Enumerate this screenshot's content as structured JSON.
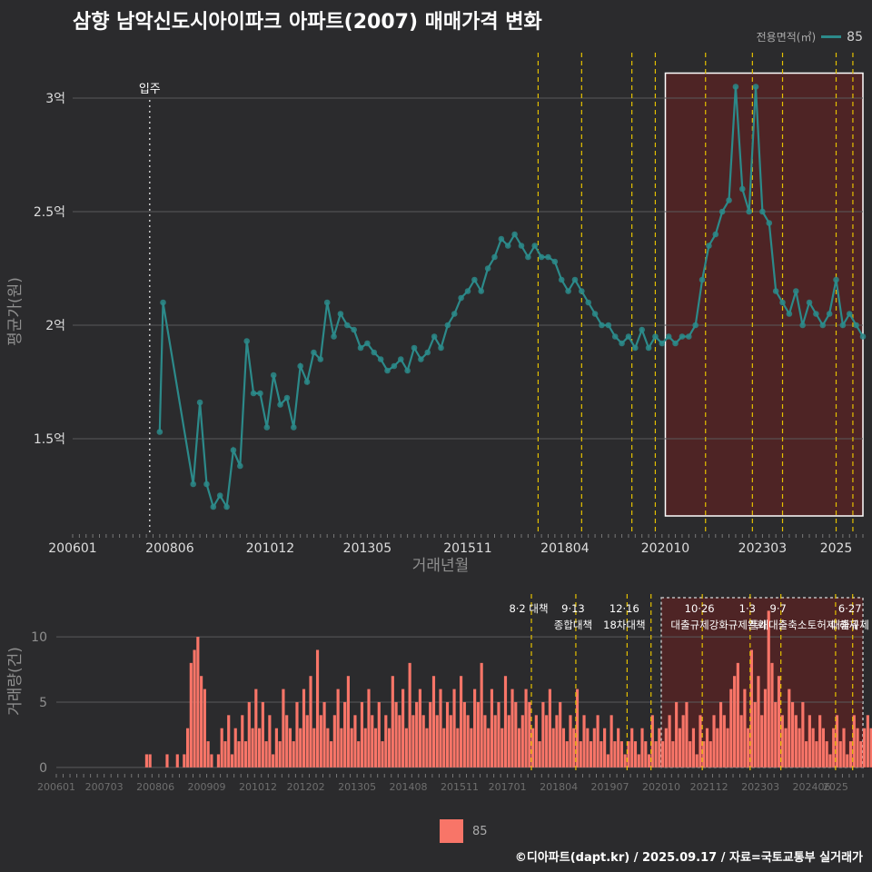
{
  "title": "삼향 남악신도시아이파크 아파트(2007) 매매가격 변화",
  "legend_top": {
    "title": "전용면적(㎡)",
    "value": "85"
  },
  "legend_bottom": {
    "value": "85"
  },
  "footer": "©디아파트(dapt.kr) / 2025.09.17 / 자료=국토교통부 실거래가",
  "colors": {
    "line": "#2c8a8a",
    "point": "#2c8a8a",
    "bar": "#f87568",
    "highlight": "#6b1f1f",
    "policy": "#e5c100",
    "bg": "#2b2b2d"
  },
  "chart_data": [
    {
      "type": "line",
      "title": "삼향 남악신도시아이파크 아파트(2007) 매매가격 변화",
      "xlabel": "거래년월",
      "ylabel": "평균가(원)",
      "x_ticks": [
        "200601",
        "200806",
        "201012",
        "201305",
        "201511",
        "201804",
        "202010",
        "202303",
        "2025"
      ],
      "y_ticks": [
        {
          "value": 1.5,
          "label": "1.5억"
        },
        {
          "value": 2.0,
          "label": "2억"
        },
        {
          "value": 2.5,
          "label": "2.5억"
        },
        {
          "value": 3.0,
          "label": "3억"
        }
      ],
      "ylim": [
        1.08,
        3.2
      ],
      "annotation": {
        "label": "입주",
        "x": "2007-12"
      },
      "policy_lines": [
        "2017-08",
        "2018-09",
        "2019-12",
        "2020-07",
        "2021-10",
        "2022-12",
        "2023-09",
        "2025-01",
        "2025-06"
      ],
      "highlight_range": [
        "2020-10",
        "2025-09"
      ],
      "series": [
        {
          "name": "85",
          "points": [
            [
              "2008-03",
              1.53
            ],
            [
              "2008-04",
              2.1
            ],
            [
              "2009-01",
              1.3
            ],
            [
              "2009-03",
              1.66
            ],
            [
              "2009-05",
              1.3
            ],
            [
              "2009-07",
              1.2
            ],
            [
              "2009-09",
              1.25
            ],
            [
              "2009-11",
              1.2
            ],
            [
              "2010-01",
              1.45
            ],
            [
              "2010-03",
              1.38
            ],
            [
              "2010-05",
              1.93
            ],
            [
              "2010-07",
              1.7
            ],
            [
              "2010-09",
              1.7
            ],
            [
              "2010-11",
              1.55
            ],
            [
              "2011-01",
              1.78
            ],
            [
              "2011-03",
              1.65
            ],
            [
              "2011-05",
              1.68
            ],
            [
              "2011-07",
              1.55
            ],
            [
              "2011-09",
              1.82
            ],
            [
              "2011-11",
              1.75
            ],
            [
              "2012-01",
              1.88
            ],
            [
              "2012-03",
              1.85
            ],
            [
              "2012-05",
              2.1
            ],
            [
              "2012-07",
              1.95
            ],
            [
              "2012-09",
              2.05
            ],
            [
              "2012-11",
              2.0
            ],
            [
              "2013-01",
              1.98
            ],
            [
              "2013-03",
              1.9
            ],
            [
              "2013-05",
              1.92
            ],
            [
              "2013-07",
              1.88
            ],
            [
              "2013-09",
              1.85
            ],
            [
              "2013-11",
              1.8
            ],
            [
              "2014-01",
              1.82
            ],
            [
              "2014-03",
              1.85
            ],
            [
              "2014-05",
              1.8
            ],
            [
              "2014-07",
              1.9
            ],
            [
              "2014-09",
              1.85
            ],
            [
              "2014-11",
              1.88
            ],
            [
              "2015-01",
              1.95
            ],
            [
              "2015-03",
              1.9
            ],
            [
              "2015-05",
              2.0
            ],
            [
              "2015-07",
              2.05
            ],
            [
              "2015-09",
              2.12
            ],
            [
              "2015-11",
              2.15
            ],
            [
              "2016-01",
              2.2
            ],
            [
              "2016-03",
              2.15
            ],
            [
              "2016-05",
              2.25
            ],
            [
              "2016-07",
              2.3
            ],
            [
              "2016-09",
              2.38
            ],
            [
              "2016-11",
              2.35
            ],
            [
              "2017-01",
              2.4
            ],
            [
              "2017-03",
              2.35
            ],
            [
              "2017-05",
              2.3
            ],
            [
              "2017-07",
              2.35
            ],
            [
              "2017-09",
              2.3
            ],
            [
              "2017-11",
              2.3
            ],
            [
              "2018-01",
              2.28
            ],
            [
              "2018-03",
              2.2
            ],
            [
              "2018-05",
              2.15
            ],
            [
              "2018-07",
              2.2
            ],
            [
              "2018-09",
              2.15
            ],
            [
              "2018-11",
              2.1
            ],
            [
              "2019-01",
              2.05
            ],
            [
              "2019-03",
              2.0
            ],
            [
              "2019-05",
              2.0
            ],
            [
              "2019-07",
              1.95
            ],
            [
              "2019-09",
              1.92
            ],
            [
              "2019-11",
              1.95
            ],
            [
              "2020-01",
              1.9
            ],
            [
              "2020-03",
              1.98
            ],
            [
              "2020-05",
              1.9
            ],
            [
              "2020-07",
              1.95
            ],
            [
              "2020-09",
              1.92
            ],
            [
              "2020-11",
              1.95
            ],
            [
              "2021-01",
              1.92
            ],
            [
              "2021-03",
              1.95
            ],
            [
              "2021-05",
              1.95
            ],
            [
              "2021-07",
              2.0
            ],
            [
              "2021-09",
              2.2
            ],
            [
              "2021-11",
              2.35
            ],
            [
              "2022-01",
              2.4
            ],
            [
              "2022-03",
              2.5
            ],
            [
              "2022-05",
              2.55
            ],
            [
              "2022-07",
              3.05
            ],
            [
              "2022-09",
              2.6
            ],
            [
              "2022-11",
              2.5
            ],
            [
              "2023-01",
              3.05
            ],
            [
              "2023-03",
              2.5
            ],
            [
              "2023-05",
              2.45
            ],
            [
              "2023-07",
              2.15
            ],
            [
              "2023-09",
              2.1
            ],
            [
              "2023-11",
              2.05
            ],
            [
              "2024-01",
              2.15
            ],
            [
              "2024-03",
              2.0
            ],
            [
              "2024-05",
              2.1
            ],
            [
              "2024-07",
              2.05
            ],
            [
              "2024-09",
              2.0
            ],
            [
              "2024-11",
              2.05
            ],
            [
              "2025-01",
              2.2
            ],
            [
              "2025-03",
              2.0
            ],
            [
              "2025-05",
              2.05
            ],
            [
              "2025-07",
              2.0
            ],
            [
              "2025-09",
              1.95
            ]
          ]
        }
      ]
    },
    {
      "type": "bar",
      "xlabel": "",
      "ylabel": "거래량(건)",
      "x_ticks": [
        "200601",
        "200703",
        "200806",
        "200909",
        "201012",
        "201202",
        "201305",
        "201408",
        "201511",
        "201701",
        "201804",
        "201907",
        "202010",
        "202112",
        "202303",
        "202406",
        "2025"
      ],
      "y_ticks": [
        0,
        5,
        10
      ],
      "ylim": [
        -0.5,
        13
      ],
      "highlight_range": [
        "2020-10",
        "2025-09"
      ],
      "policies": [
        {
          "date": "2017-08",
          "line1": "8·2 대책",
          "line2": ""
        },
        {
          "date": "2018-09",
          "line1": "9·13",
          "line2": "종합대책"
        },
        {
          "date": "2019-12",
          "line1": "12·16",
          "line2": "18차대책"
        },
        {
          "date": "2020-07",
          "line1": "",
          "line2": ""
        },
        {
          "date": "2021-10",
          "line1": "10·26",
          "line2": "대출규제강화"
        },
        {
          "date": "2022-12",
          "line1": "1·3",
          "line2": "규제완화"
        },
        {
          "date": "2023-09",
          "line1": "9·7",
          "line2": "특례대출축소"
        },
        {
          "date": "2025-01",
          "line1": "",
          "line2": "토허제 해제"
        },
        {
          "date": "2025-06",
          "line1": "6·27",
          "line2": "대출규제"
        }
      ],
      "series": [
        {
          "name": "85",
          "start": "2008-03",
          "values": [
            1,
            1,
            0,
            0,
            0,
            0,
            1,
            0,
            0,
            1,
            0,
            1,
            3,
            8,
            9,
            10,
            7,
            6,
            2,
            1,
            0,
            1,
            3,
            2,
            4,
            1,
            3,
            2,
            4,
            2,
            5,
            3,
            6,
            3,
            5,
            2,
            4,
            1,
            3,
            2,
            6,
            4,
            3,
            2,
            5,
            3,
            6,
            4,
            7,
            3,
            9,
            4,
            5,
            3,
            2,
            4,
            6,
            3,
            5,
            7,
            3,
            4,
            2,
            5,
            3,
            6,
            4,
            3,
            5,
            2,
            4,
            3,
            7,
            5,
            4,
            6,
            3,
            8,
            4,
            5,
            6,
            4,
            3,
            5,
            7,
            4,
            6,
            3,
            5,
            4,
            6,
            3,
            7,
            5,
            4,
            3,
            6,
            5,
            8,
            4,
            3,
            6,
            4,
            5,
            3,
            7,
            4,
            6,
            5,
            3,
            4,
            6,
            5,
            3,
            4,
            2,
            5,
            4,
            6,
            3,
            4,
            5,
            3,
            2,
            4,
            3,
            6,
            2,
            4,
            3,
            2,
            3,
            4,
            2,
            3,
            1,
            4,
            2,
            3,
            2,
            1,
            2,
            3,
            2,
            1,
            3,
            2,
            1,
            4,
            2,
            3,
            2,
            3,
            4,
            2,
            5,
            3,
            4,
            5,
            2,
            3,
            1,
            4,
            2,
            3,
            2,
            4,
            3,
            5,
            4,
            3,
            6,
            7,
            8,
            4,
            6,
            3,
            9,
            5,
            7,
            4,
            6,
            12,
            8,
            5,
            7,
            4,
            3,
            6,
            5,
            4,
            3,
            5,
            2,
            4,
            3,
            2,
            4,
            3,
            2,
            1,
            3,
            4,
            2,
            3,
            1,
            2,
            4,
            3,
            2,
            3,
            4,
            3,
            2,
            4,
            3,
            2,
            4,
            2,
            3,
            4,
            3,
            5,
            2,
            3,
            4
          ]
        }
      ]
    }
  ]
}
